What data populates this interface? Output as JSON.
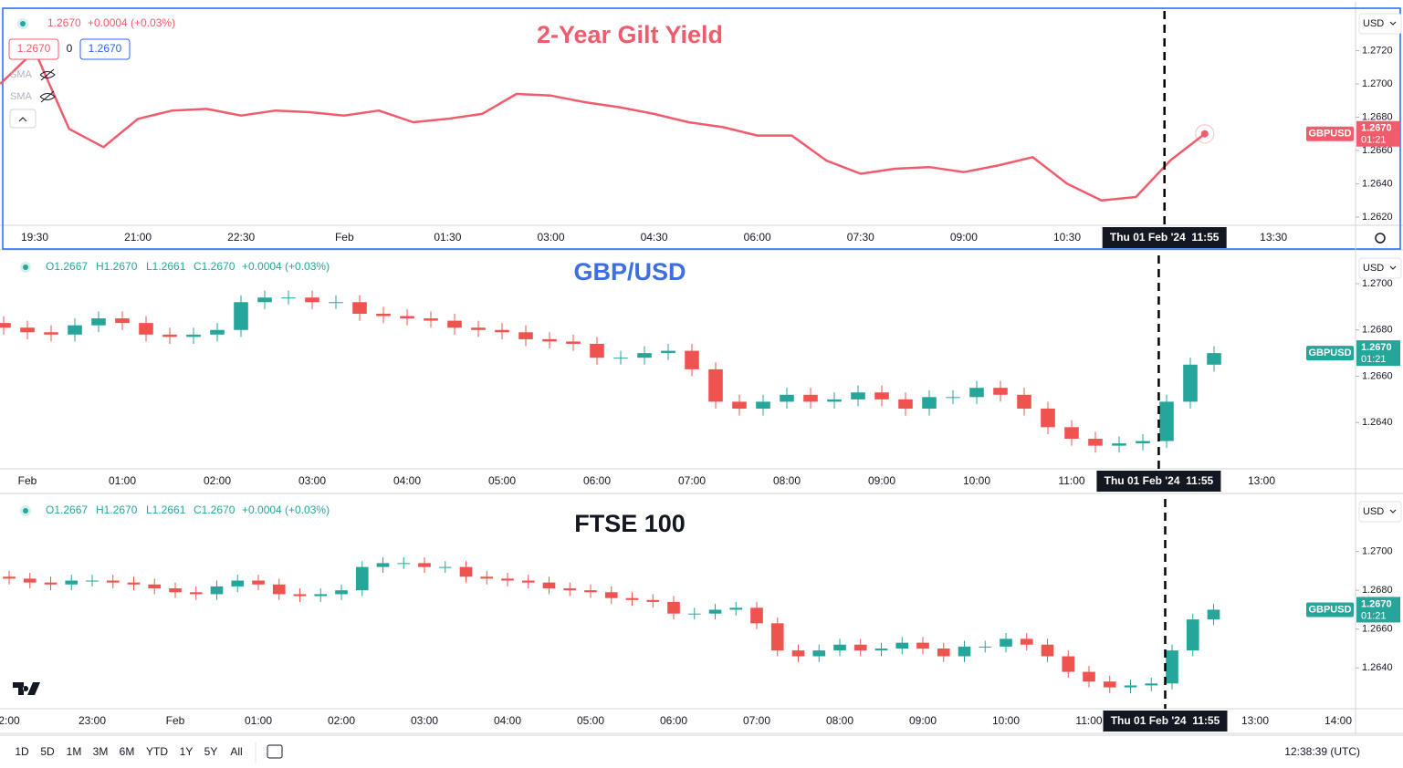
{
  "chart_data": [
    {
      "type": "line",
      "title": "2-Year Gilt Yield",
      "title_color": "#f05c6c",
      "color": "#f05c6c",
      "header": {
        "price": "1.2670",
        "change": "+0.0004 (+0.03%)",
        "inputs": [
          "1.2670",
          "0",
          "1.2670"
        ],
        "indicators": [
          "SMA",
          "SMA"
        ]
      },
      "currency": "USD",
      "symbol": "GBPUSD",
      "last_label": "1.2670",
      "countdown": "01:21",
      "crosshair_label": "Thu 01 Feb '24  11:55",
      "categories": [
        null,
        "19:30",
        null,
        null,
        "21:00",
        null,
        null,
        "22:30",
        null,
        null,
        "Feb",
        null,
        null,
        "01:30",
        null,
        null,
        "03:00",
        null,
        null,
        "04:30",
        null,
        null,
        "06:00",
        null,
        null,
        "07:30",
        null,
        null,
        "09:00",
        null,
        null,
        "10:30",
        null,
        null,
        null,
        null,
        null,
        "13:30"
      ],
      "values": [
        1.27,
        1.272,
        1.2673,
        1.2662,
        1.2679,
        1.2684,
        1.2685,
        1.2681,
        1.2684,
        1.2683,
        1.2681,
        1.2684,
        1.2677,
        1.2679,
        1.2682,
        1.2694,
        1.2693,
        1.2689,
        1.2686,
        1.2682,
        1.2677,
        1.2674,
        1.2669,
        1.2669,
        1.2654,
        1.2646,
        1.2649,
        1.265,
        1.2647,
        1.2651,
        1.2656,
        1.264,
        1.263,
        1.2632,
        1.2654,
        1.267,
        null,
        null
      ],
      "ylim": [
        1.2615,
        1.2745
      ],
      "yticks": [
        {
          "value": 1.262,
          "label": "1.2620"
        },
        {
          "value": 1.264,
          "label": "1.2640"
        },
        {
          "value": 1.266,
          "label": "1.2660"
        },
        {
          "value": 1.268,
          "label": "1.2680"
        },
        {
          "value": 1.27,
          "label": "1.2700"
        },
        {
          "value": 1.272,
          "label": "1.2720"
        }
      ]
    },
    {
      "type": "candlestick",
      "title": "GBP/USD",
      "title_color": "#3d6fe0",
      "up_color": "#26a69a",
      "down_color": "#ef5350",
      "header": [
        "O1.2667",
        "H1.2670",
        "L1.2661",
        "C1.2670",
        "+0.0004 (+0.03%)"
      ],
      "currency": "USD",
      "symbol": "GBPUSD",
      "last_label": "1.2670",
      "countdown": "01:21",
      "crosshair_label": "Thu 01 Feb '24  11:55",
      "categories": [
        null,
        "Feb",
        null,
        null,
        null,
        "01:00",
        null,
        null,
        null,
        "02:00",
        null,
        null,
        null,
        "03:00",
        null,
        null,
        null,
        "04:00",
        null,
        null,
        null,
        "05:00",
        null,
        null,
        null,
        "06:00",
        null,
        null,
        null,
        "07:00",
        null,
        null,
        null,
        "08:00",
        null,
        null,
        null,
        "09:00",
        null,
        null,
        null,
        "10:00",
        null,
        null,
        null,
        "11:00",
        null,
        null,
        null,
        null,
        null,
        null,
        null,
        "13:00"
      ],
      "open": [
        1.2683,
        1.2681,
        1.2679,
        1.2678,
        1.2682,
        1.2685,
        1.2683,
        1.2678,
        1.2677,
        1.2678,
        1.268,
        1.2692,
        1.2694,
        1.2694,
        1.2692,
        1.2692,
        1.2687,
        1.2686,
        1.2685,
        1.2684,
        1.2681,
        1.268,
        1.2679,
        1.2676,
        1.2675,
        1.2674,
        1.2668,
        1.2668,
        1.267,
        1.2671,
        1.2663,
        1.2649,
        1.2646,
        1.2649,
        1.2652,
        1.2649,
        1.265,
        1.2653,
        1.265,
        1.2646,
        1.2651,
        1.2651,
        1.2655,
        1.2652,
        1.2646,
        1.2638,
        1.2633,
        1.263,
        1.2631,
        1.2632,
        1.2649,
        1.2665,
        null,
        null
      ],
      "high": [
        1.2686,
        1.2684,
        1.2682,
        1.2685,
        1.2688,
        1.2688,
        1.2686,
        1.2681,
        1.2681,
        1.2683,
        1.2695,
        1.2697,
        1.2697,
        1.2697,
        1.2695,
        1.2695,
        1.269,
        1.2689,
        1.2688,
        1.2687,
        1.2684,
        1.2683,
        1.2682,
        1.2679,
        1.2678,
        1.2677,
        1.2671,
        1.2673,
        1.2674,
        1.2674,
        1.2666,
        1.2652,
        1.2652,
        1.2655,
        1.2655,
        1.2653,
        1.2656,
        1.2656,
        1.2653,
        1.2654,
        1.2654,
        1.2658,
        1.2658,
        1.2655,
        1.2649,
        1.2641,
        1.2636,
        1.2634,
        1.2635,
        1.2652,
        1.2668,
        1.2673,
        null,
        null
      ],
      "low": [
        1.2678,
        1.2676,
        1.2675,
        1.2675,
        1.2679,
        1.268,
        1.2675,
        1.2674,
        1.2674,
        1.2675,
        1.2677,
        1.2689,
        1.2691,
        1.2689,
        1.2689,
        1.2684,
        1.2683,
        1.2682,
        1.2681,
        1.2678,
        1.2677,
        1.2676,
        1.2673,
        1.2672,
        1.2671,
        1.2665,
        1.2665,
        1.2665,
        1.2667,
        1.266,
        1.2646,
        1.2643,
        1.2643,
        1.2646,
        1.2646,
        1.2646,
        1.2647,
        1.2647,
        1.2643,
        1.2643,
        1.2648,
        1.2648,
        1.2649,
        1.2643,
        1.2635,
        1.263,
        1.2627,
        1.2627,
        1.2628,
        1.2629,
        1.2646,
        1.2662,
        null,
        null
      ],
      "close": [
        1.2681,
        1.2679,
        1.2678,
        1.2682,
        1.2685,
        1.2683,
        1.2678,
        1.2677,
        1.2678,
        1.268,
        1.2692,
        1.2694,
        1.2694,
        1.2692,
        1.2692,
        1.2687,
        1.2686,
        1.2685,
        1.2684,
        1.2681,
        1.268,
        1.2679,
        1.2676,
        1.2675,
        1.2674,
        1.2668,
        1.2668,
        1.267,
        1.2671,
        1.2663,
        1.2649,
        1.2646,
        1.2649,
        1.2652,
        1.2649,
        1.265,
        1.2653,
        1.265,
        1.2646,
        1.2651,
        1.2651,
        1.2655,
        1.2652,
        1.2646,
        1.2638,
        1.2633,
        1.263,
        1.2631,
        1.2632,
        1.2649,
        1.2665,
        1.267,
        null,
        null
      ],
      "ylim": [
        1.262,
        1.2713
      ],
      "yticks": [
        {
          "value": 1.264,
          "label": "1.2640"
        },
        {
          "value": 1.266,
          "label": "1.2660"
        },
        {
          "value": 1.268,
          "label": "1.2680"
        },
        {
          "value": 1.27,
          "label": "1.2700"
        }
      ]
    },
    {
      "type": "candlestick",
      "title": "FTSE 100",
      "title_color": "#131722",
      "up_color": "#26a69a",
      "down_color": "#ef5350",
      "header": [
        "O1.2667",
        "H1.2670",
        "L1.2661",
        "C1.2670",
        "+0.0004 (+0.03%)"
      ],
      "currency": "USD",
      "symbol": "GBPUSD",
      "last_label": "1.2670",
      "countdown": "01:21",
      "crosshair_label": "Thu 01 Feb '24  11:55",
      "categories": [
        "2:00",
        null,
        null,
        null,
        "23:00",
        null,
        null,
        null,
        "Feb",
        null,
        null,
        null,
        "01:00",
        null,
        null,
        null,
        "02:00",
        null,
        null,
        null,
        "03:00",
        null,
        null,
        null,
        "04:00",
        null,
        null,
        null,
        "05:00",
        null,
        null,
        null,
        "06:00",
        null,
        null,
        null,
        "07:00",
        null,
        null,
        null,
        "08:00",
        null,
        null,
        null,
        "09:00",
        null,
        null,
        null,
        "10:00",
        null,
        null,
        null,
        "11:00",
        null,
        null,
        null,
        null,
        null,
        null,
        null,
        "13:00",
        null,
        null,
        null,
        "14:00"
      ],
      "open": [
        1.2687,
        1.2686,
        1.2684,
        1.2683,
        1.2685,
        1.2685,
        1.2684,
        1.2683,
        1.2681,
        1.2679,
        1.2678,
        1.2682,
        1.2685,
        1.2683,
        1.2678,
        1.2677,
        1.2678,
        1.268,
        1.2692,
        1.2694,
        1.2694,
        1.2692,
        1.2692,
        1.2687,
        1.2686,
        1.2685,
        1.2684,
        1.2681,
        1.268,
        1.2679,
        1.2676,
        1.2675,
        1.2674,
        1.2668,
        1.2668,
        1.267,
        1.2671,
        1.2663,
        1.2649,
        1.2646,
        1.2649,
        1.2652,
        1.2649,
        1.265,
        1.2653,
        1.265,
        1.2646,
        1.2651,
        1.2651,
        1.2655,
        1.2652,
        1.2646,
        1.2638,
        1.2633,
        1.263,
        1.2631,
        1.2632,
        1.2649,
        1.2665,
        null,
        null,
        null,
        null,
        null,
        null
      ],
      "high": [
        1.269,
        1.2689,
        1.2687,
        1.2688,
        1.2688,
        1.2688,
        1.2687,
        1.2686,
        1.2684,
        1.2682,
        1.2685,
        1.2688,
        1.2688,
        1.2686,
        1.2681,
        1.2681,
        1.2683,
        1.2695,
        1.2697,
        1.2697,
        1.2697,
        1.2695,
        1.2695,
        1.269,
        1.2689,
        1.2688,
        1.2687,
        1.2684,
        1.2683,
        1.2682,
        1.2679,
        1.2678,
        1.2677,
        1.2671,
        1.2673,
        1.2674,
        1.2674,
        1.2666,
        1.2652,
        1.2652,
        1.2655,
        1.2655,
        1.2653,
        1.2656,
        1.2656,
        1.2653,
        1.2654,
        1.2654,
        1.2658,
        1.2658,
        1.2655,
        1.2649,
        1.2641,
        1.2636,
        1.2634,
        1.2635,
        1.2652,
        1.2668,
        1.2673,
        null,
        null,
        null,
        null,
        null,
        null
      ],
      "low": [
        1.2683,
        1.2681,
        1.268,
        1.268,
        1.2682,
        1.2681,
        1.268,
        1.2678,
        1.2676,
        1.2675,
        1.2675,
        1.2679,
        1.268,
        1.2675,
        1.2674,
        1.2674,
        1.2675,
        1.2677,
        1.2689,
        1.2691,
        1.2689,
        1.2689,
        1.2684,
        1.2683,
        1.2682,
        1.2681,
        1.2678,
        1.2677,
        1.2676,
        1.2673,
        1.2672,
        1.2671,
        1.2665,
        1.2665,
        1.2665,
        1.2667,
        1.266,
        1.2646,
        1.2643,
        1.2643,
        1.2646,
        1.2646,
        1.2646,
        1.2647,
        1.2647,
        1.2643,
        1.2643,
        1.2648,
        1.2648,
        1.2649,
        1.2643,
        1.2635,
        1.263,
        1.2627,
        1.2627,
        1.2628,
        1.2629,
        1.2646,
        1.2662,
        null,
        null,
        null,
        null,
        null,
        null
      ],
      "close": [
        1.2686,
        1.2684,
        1.2683,
        1.2685,
        1.2685,
        1.2684,
        1.2683,
        1.2681,
        1.2679,
        1.2678,
        1.2682,
        1.2685,
        1.2683,
        1.2678,
        1.2677,
        1.2678,
        1.268,
        1.2692,
        1.2694,
        1.2694,
        1.2692,
        1.2692,
        1.2687,
        1.2686,
        1.2685,
        1.2684,
        1.2681,
        1.268,
        1.2679,
        1.2676,
        1.2675,
        1.2674,
        1.2668,
        1.2668,
        1.267,
        1.2671,
        1.2663,
        1.2649,
        1.2646,
        1.2649,
        1.2652,
        1.2649,
        1.265,
        1.2653,
        1.265,
        1.2646,
        1.2651,
        1.2651,
        1.2655,
        1.2652,
        1.2646,
        1.2638,
        1.2633,
        1.263,
        1.2631,
        1.2632,
        1.2649,
        1.2665,
        1.267,
        null,
        null,
        null,
        null,
        null,
        null
      ],
      "ylim": [
        1.2619,
        1.2728
      ],
      "yticks": [
        {
          "value": 1.264,
          "label": "1.2640"
        },
        {
          "value": 1.266,
          "label": "1.2660"
        },
        {
          "value": 1.268,
          "label": "1.2680"
        },
        {
          "value": 1.27,
          "label": "1.2700"
        }
      ]
    }
  ],
  "toolbar": {
    "ranges": [
      "1D",
      "5D",
      "1M",
      "3M",
      "6M",
      "YTD",
      "1Y",
      "5Y",
      "All"
    ],
    "clock": "12:38:39 (UTC)"
  }
}
